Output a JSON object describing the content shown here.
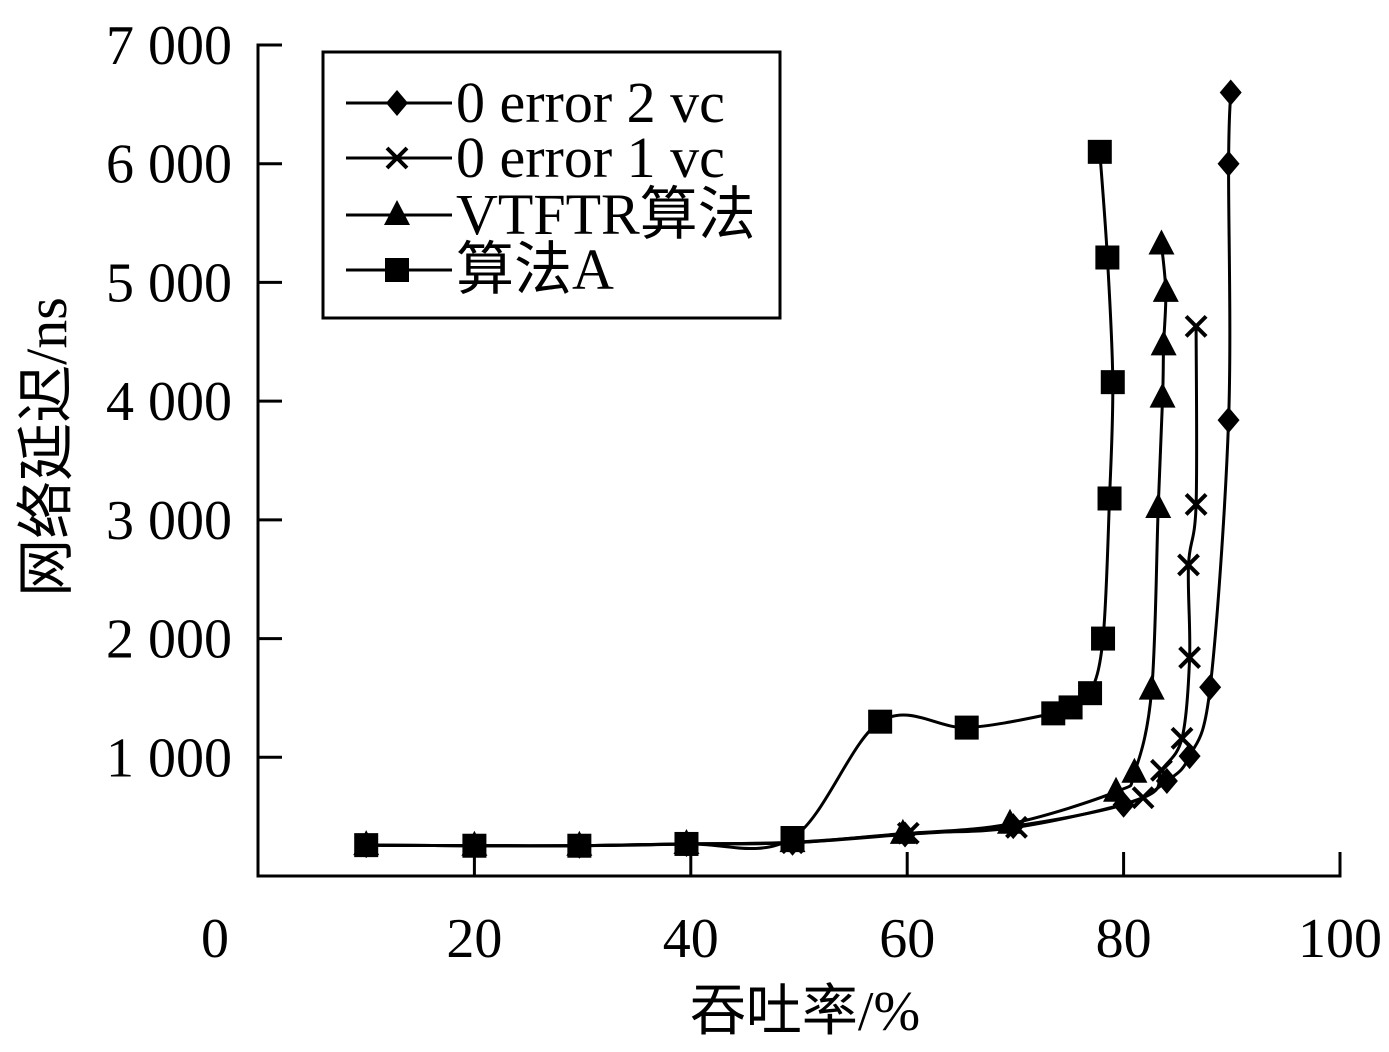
{
  "chart_data": {
    "type": "line",
    "smooth": true,
    "xlabel": "吞吐率/%",
    "ylabel": "网络延迟/ns",
    "xlim": [
      0,
      100
    ],
    "ylim": [
      0,
      7000
    ],
    "grid": false,
    "legend_position": "top-left",
    "x_ticks": [
      {
        "value": 0,
        "label": "0"
      },
      {
        "value": 20,
        "label": "20"
      },
      {
        "value": 40,
        "label": "40"
      },
      {
        "value": 60,
        "label": "60"
      },
      {
        "value": 80,
        "label": "80"
      },
      {
        "value": 100,
        "label": "100"
      }
    ],
    "y_ticks": [
      {
        "value": 1000,
        "label": "1 000"
      },
      {
        "value": 2000,
        "label": "2 000"
      },
      {
        "value": 3000,
        "label": "3 000"
      },
      {
        "value": 4000,
        "label": "4 000"
      },
      {
        "value": 5000,
        "label": "5 000"
      },
      {
        "value": 6000,
        "label": "6 000"
      },
      {
        "value": 7000,
        "label": "7 000"
      }
    ],
    "series": [
      {
        "name": "0 error 2 vc",
        "marker": "diamond",
        "color": "#000000",
        "points": [
          [
            10,
            260
          ],
          [
            20,
            255
          ],
          [
            29.7,
            255
          ],
          [
            39.6,
            270
          ],
          [
            49.4,
            280
          ],
          [
            59.8,
            350
          ],
          [
            69.8,
            420
          ],
          [
            80,
            600
          ],
          [
            84,
            800
          ],
          [
            86.1,
            1010
          ],
          [
            88,
            1590
          ],
          [
            89.7,
            3840
          ],
          [
            89.7,
            6000
          ],
          [
            89.9,
            6600
          ]
        ]
      },
      {
        "name": "0 error 1 vc",
        "marker": "cross",
        "color": "#000000",
        "points": [
          [
            10,
            260
          ],
          [
            20,
            255
          ],
          [
            29.7,
            255
          ],
          [
            39.6,
            270
          ],
          [
            49.4,
            280
          ],
          [
            60.1,
            360
          ],
          [
            70.1,
            410
          ],
          [
            81.8,
            660
          ],
          [
            83.5,
            890
          ],
          [
            85.4,
            1160
          ],
          [
            86.1,
            1840
          ],
          [
            86,
            2620
          ],
          [
            86.7,
            3130
          ],
          [
            86.7,
            4630
          ]
        ]
      },
      {
        "name": "VTFTR算法",
        "marker": "triangle",
        "color": "#000000",
        "points": [
          [
            10,
            260
          ],
          [
            20,
            255
          ],
          [
            29.7,
            255
          ],
          [
            39.6,
            270
          ],
          [
            49.4,
            285
          ],
          [
            59.6,
            355
          ],
          [
            69.5,
            440
          ],
          [
            79.3,
            710
          ],
          [
            81,
            870
          ],
          [
            82.6,
            1570
          ],
          [
            83.2,
            3100
          ],
          [
            83.6,
            4030
          ],
          [
            83.7,
            4470
          ],
          [
            83.9,
            4920
          ],
          [
            83.5,
            5320
          ]
        ]
      },
      {
        "name": "算法A",
        "marker": "square",
        "color": "#000000",
        "points": [
          [
            10,
            260
          ],
          [
            20,
            255
          ],
          [
            29.7,
            255
          ],
          [
            39.6,
            270
          ],
          [
            49.4,
            320
          ],
          [
            57.5,
            1300
          ],
          [
            65.5,
            1250
          ],
          [
            73.5,
            1370
          ],
          [
            75.1,
            1420
          ],
          [
            76.9,
            1540
          ],
          [
            78.1,
            2000
          ],
          [
            78.7,
            3180
          ],
          [
            79,
            4160
          ],
          [
            78.5,
            5210
          ],
          [
            77.8,
            6100
          ]
        ]
      }
    ]
  }
}
